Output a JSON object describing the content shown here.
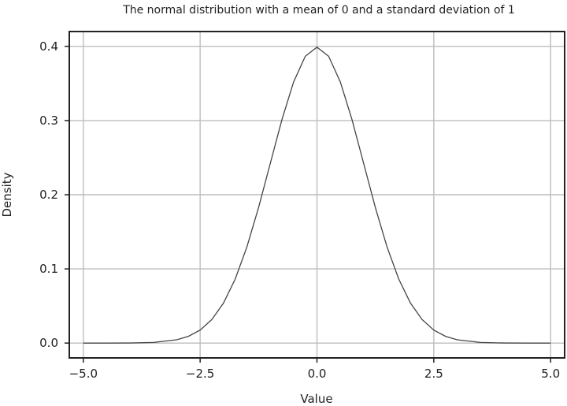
{
  "chart_data": {
    "type": "line",
    "title": "The normal distribution with a mean of 0 and a standard deviation of 1",
    "xlabel": "Value",
    "ylabel": "Density",
    "xlim": [
      -5.3,
      5.3
    ],
    "ylim": [
      -0.02,
      0.42
    ],
    "xticks": [
      -5.0,
      -2.5,
      0.0,
      2.5,
      5.0
    ],
    "xtick_labels": [
      "−5.0",
      "−2.5",
      "0.0",
      "2.5",
      "5.0"
    ],
    "yticks": [
      0.0,
      0.1,
      0.2,
      0.3,
      0.4
    ],
    "ytick_labels": [
      "0.0",
      "0.1",
      "0.2",
      "0.3",
      "0.4"
    ],
    "grid": true,
    "legend": "none",
    "colors": {
      "line": "#444444",
      "grid": "#bdbdbd",
      "frame": "#222222"
    },
    "series": [
      {
        "x": [
          -5.0,
          -4.5,
          -4.0,
          -3.5,
          -3.0,
          -2.75,
          -2.5,
          -2.25,
          -2.0,
          -1.75,
          -1.5,
          -1.25,
          -1.0,
          -0.75,
          -0.5,
          -0.25,
          0.0,
          0.25,
          0.5,
          0.75,
          1.0,
          1.25,
          1.5,
          1.75,
          2.0,
          2.25,
          2.5,
          2.75,
          3.0,
          3.5,
          4.0,
          4.5,
          5.0
        ],
        "y": [
          1.5e-06,
          1.6e-05,
          0.000134,
          0.000873,
          0.00443,
          0.00909,
          0.01753,
          0.03174,
          0.05399,
          0.08628,
          0.12952,
          0.18265,
          0.24197,
          0.30114,
          0.35207,
          0.38667,
          0.39894,
          0.38667,
          0.35207,
          0.30114,
          0.24197,
          0.18265,
          0.12952,
          0.08628,
          0.05399,
          0.03174,
          0.01753,
          0.00909,
          0.00443,
          0.000873,
          0.000134,
          1.6e-05,
          1.5e-06
        ]
      }
    ]
  }
}
